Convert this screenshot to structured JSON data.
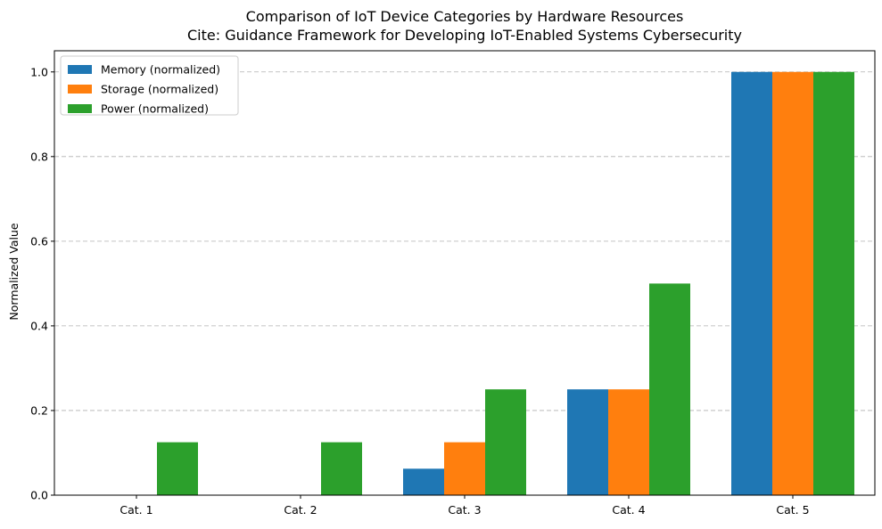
{
  "chart_data": {
    "type": "bar",
    "title": "Comparison of IoT Device Categories by Hardware Resources",
    "subtitle": "Cite: Guidance Framework for Developing IoT-Enabled Systems Cybersecurity",
    "xlabel": "",
    "ylabel": "Normalized Value",
    "categories": [
      "Cat. 1",
      "Cat. 2",
      "Cat. 3",
      "Cat. 4",
      "Cat. 5"
    ],
    "series": [
      {
        "name": "Memory (normalized)",
        "color": "#1f77b4",
        "values": [
          0.0,
          0.0,
          0.0625,
          0.25,
          1.0
        ]
      },
      {
        "name": "Storage (normalized)",
        "color": "#ff7f0e",
        "values": [
          0.0,
          0.0,
          0.125,
          0.25,
          1.0
        ]
      },
      {
        "name": "Power (normalized)",
        "color": "#2ca02c",
        "values": [
          0.125,
          0.125,
          0.25,
          0.5,
          1.0
        ]
      }
    ],
    "ylim": [
      0,
      1.05
    ],
    "yticks": [
      "0.0",
      "0.2",
      "0.4",
      "0.6",
      "0.8",
      "1.0"
    ],
    "grid": "y-dashed",
    "legend_position": "top-left"
  }
}
